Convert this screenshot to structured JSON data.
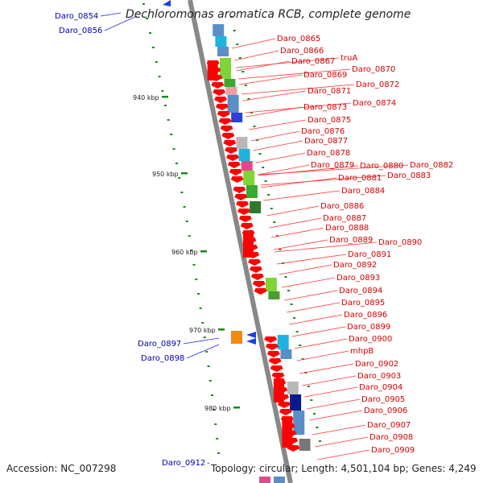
{
  "title": "Dechloromonas aromatica RCB, complete genome",
  "footer": {
    "accession": "Accession: NC_007298",
    "summary": "Topology: circular; Length: 4,501,104 bp; Genes: 4,249"
  },
  "colors": {
    "forward_label": "#d40000",
    "reverse_label": "#0000aa",
    "gene_arrow": "#ff0000",
    "backbone": "#888888",
    "tick": "#1a8a1a"
  },
  "scale_labels": [
    "940 kbp",
    "950 kbp",
    "960 kbp",
    "970 kbp",
    "980 kbp"
  ],
  "reverse_labels": [
    "Daro_0854",
    "Daro_0856",
    "Daro_0897",
    "Daro_0898",
    "Daro_0912"
  ],
  "forward_labels": [
    "Daro_0865",
    "Daro_0866",
    "Daro_0867",
    "truA",
    "Daro_0869",
    "Daro_0870",
    "Daro_0871",
    "Daro_0872",
    "Daro_0873",
    "Daro_0874",
    "Daro_0875",
    "Daro_0876",
    "Daro_0877",
    "Daro_0878",
    "Daro_0879",
    "Daro_0880",
    "Daro_0882",
    "Daro_0881",
    "Daro_0883",
    "Daro_0884",
    "Daro_0886",
    "Daro_0887",
    "Daro_0888",
    "Daro_0889",
    "Daro_0890",
    "Daro_0891",
    "Daro_0892",
    "Daro_0893",
    "Daro_0894",
    "Daro_0895",
    "Daro_0896",
    "Daro_0899",
    "Daro_0900",
    "mhpB",
    "Daro_0902",
    "Daro_0903",
    "Daro_0904",
    "Daro_0905",
    "Daro_0906",
    "Daro_0907",
    "Daro_0908",
    "Daro_0909"
  ]
}
